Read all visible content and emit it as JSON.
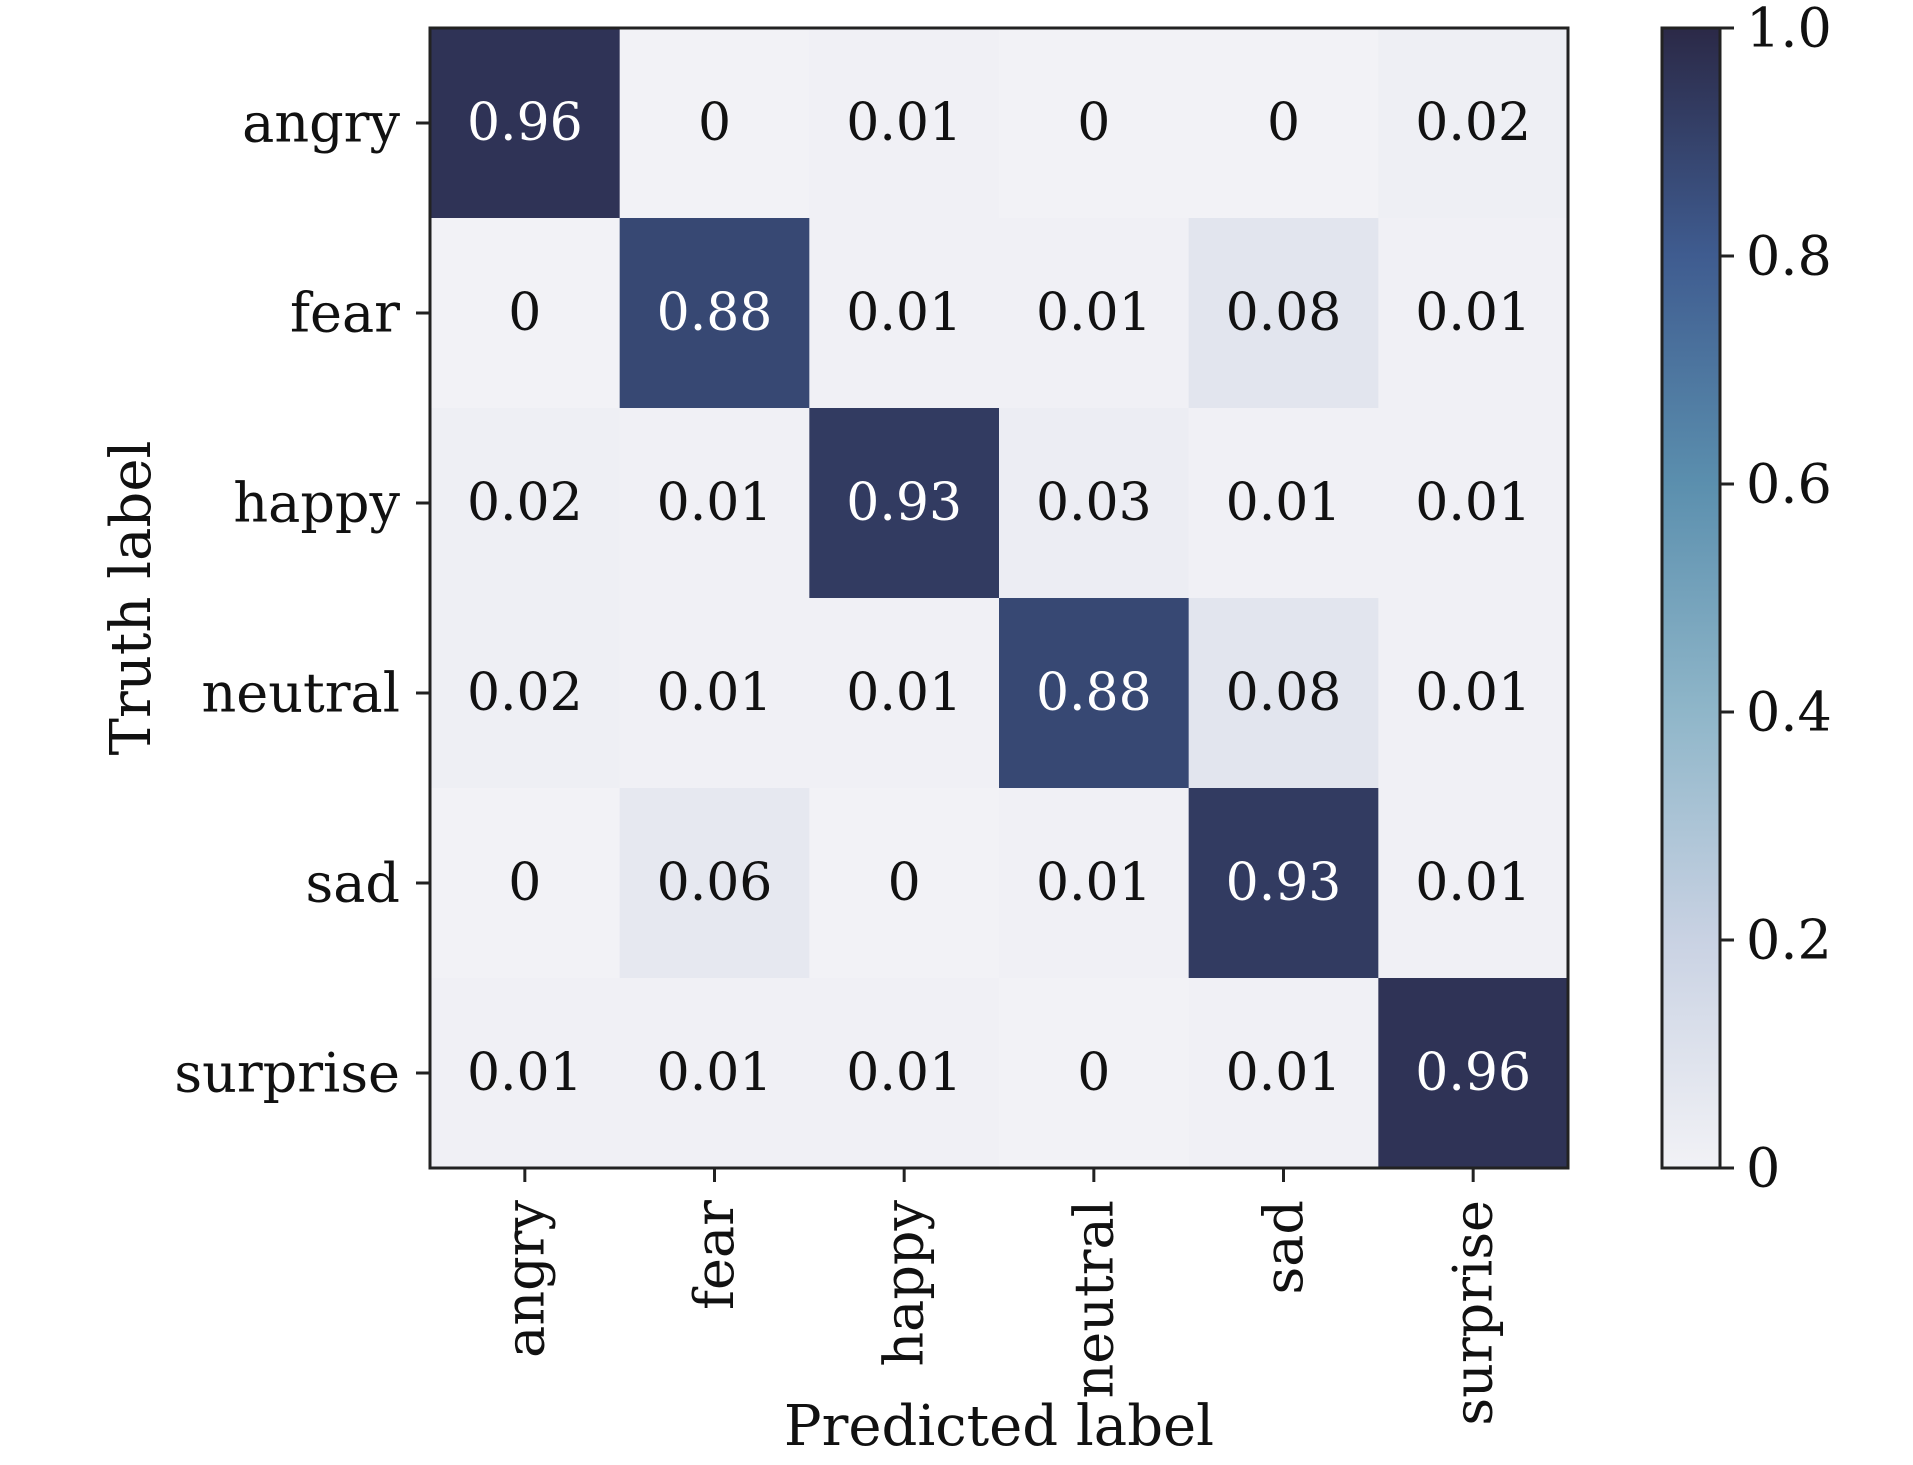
{
  "chart_data": {
    "type": "heatmap",
    "xlabel": "Predicted label",
    "ylabel": "Truth label",
    "x_categories": [
      "angry",
      "fear",
      "happy",
      "neutral",
      "sad",
      "surprise"
    ],
    "y_categories": [
      "angry",
      "fear",
      "happy",
      "neutral",
      "sad",
      "surprise"
    ],
    "values": [
      [
        0.96,
        0,
        0.01,
        0,
        0,
        0.02
      ],
      [
        0,
        0.88,
        0.01,
        0.01,
        0.08,
        0.01
      ],
      [
        0.02,
        0.01,
        0.93,
        0.03,
        0.01,
        0.01
      ],
      [
        0.02,
        0.01,
        0.01,
        0.88,
        0.08,
        0.01
      ],
      [
        0,
        0.06,
        0,
        0.01,
        0.93,
        0.01
      ],
      [
        0.01,
        0.01,
        0.01,
        0,
        0.01,
        0.96
      ]
    ],
    "cell_labels": [
      [
        "0.96",
        "0",
        "0.01",
        "0",
        "0",
        "0.02"
      ],
      [
        "0",
        "0.88",
        "0.01",
        "0.01",
        "0.08",
        "0.01"
      ],
      [
        "0.02",
        "0.01",
        "0.93",
        "0.03",
        "0.01",
        "0.01"
      ],
      [
        "0.02",
        "0.01",
        "0.01",
        "0.88",
        "0.08",
        "0.01"
      ],
      [
        "0",
        "0.06",
        "0",
        "0.01",
        "0.93",
        "0.01"
      ],
      [
        "0.01",
        "0.01",
        "0.01",
        "0",
        "0.01",
        "0.96"
      ]
    ],
    "colorbar": {
      "range": [
        0,
        1.0
      ],
      "ticks": [
        0,
        0.2,
        0.4,
        0.6,
        0.8,
        1.0
      ],
      "tick_labels": [
        "0",
        "0.2",
        "0.4",
        "0.6",
        "0.8",
        "1.0"
      ]
    },
    "colormap": [
      "#f2f2f6",
      "#c9d2e3",
      "#8fb6c9",
      "#5b8fae",
      "#3f5c90",
      "#2b2947"
    ],
    "grid": false
  }
}
